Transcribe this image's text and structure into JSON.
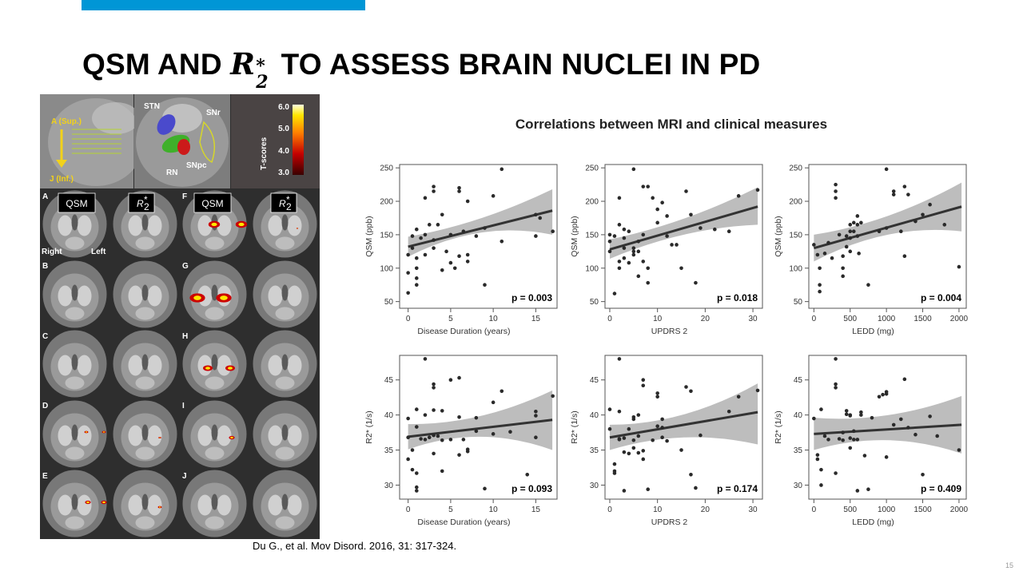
{
  "slide": {
    "title_part1": "QSM AND",
    "title_r2": "R",
    "title_r2_sub": "2",
    "title_r2_sup": "*",
    "title_part2": "TO ASSESS BRAIN NUCLEI IN PD",
    "citation": "Du G., et al. Mov Disord. 2016, 31: 317-324.",
    "page_number": "15"
  },
  "figure": {
    "top_labels": {
      "sup": "A (Sup.)",
      "inf": "J (Inf.)",
      "stn": "STN",
      "snr": "SNr",
      "rn": "RN",
      "snpc": "SNpc",
      "tscores": "T-scores"
    },
    "colorbar_ticks": [
      "6.0",
      "5.0",
      "4.0",
      "3.0"
    ],
    "column_tags": [
      "QSM",
      "R",
      "QSM",
      "R"
    ],
    "r2_sub": "2",
    "r2_sup": "*",
    "row_letters_left": [
      "A",
      "B",
      "C",
      "D",
      "E"
    ],
    "row_letters_right": [
      "F",
      "G",
      "H",
      "I",
      "J"
    ],
    "side_right": "Right",
    "side_left": "Left"
  },
  "chart_heading": "Correlations between MRI and clinical measures",
  "chart_data": [
    {
      "type": "scatter",
      "title": "",
      "xlabel": "Disease Duration (years)",
      "ylabel": "QSM (ppb)",
      "xlim": [
        -1,
        17.5
      ],
      "ylim": [
        40,
        255
      ],
      "xticks": [
        0,
        5,
        10,
        15
      ],
      "yticks": [
        50,
        100,
        150,
        200,
        250
      ],
      "p_label": "p = 0.003",
      "fit": {
        "y0": 132,
        "y1": 186
      },
      "ci": {
        "lo0": 117,
        "lom": 153,
        "lo1": 150,
        "hi0": 147,
        "him": 166,
        "hi1": 218
      },
      "points": [
        [
          0,
          63
        ],
        [
          0,
          93
        ],
        [
          0,
          120
        ],
        [
          0.5,
          148
        ],
        [
          0.5,
          130
        ],
        [
          1,
          75
        ],
        [
          1,
          85
        ],
        [
          1,
          100
        ],
        [
          1,
          115
        ],
        [
          1,
          158
        ],
        [
          1.5,
          145
        ],
        [
          2,
          120
        ],
        [
          2,
          205
        ],
        [
          2,
          150
        ],
        [
          2.5,
          165
        ],
        [
          3,
          222
        ],
        [
          3,
          215
        ],
        [
          3,
          130
        ],
        [
          3,
          142
        ],
        [
          3.5,
          165
        ],
        [
          4,
          180
        ],
        [
          4,
          97
        ],
        [
          4.5,
          125
        ],
        [
          5,
          150
        ],
        [
          5,
          108
        ],
        [
          5.5,
          100
        ],
        [
          6,
          220
        ],
        [
          6,
          215
        ],
        [
          6,
          118
        ],
        [
          6.5,
          155
        ],
        [
          7,
          200
        ],
        [
          7,
          120
        ],
        [
          7,
          110
        ],
        [
          8,
          148
        ],
        [
          9,
          75
        ],
        [
          9,
          160
        ],
        [
          10,
          208
        ],
        [
          11,
          248
        ],
        [
          11,
          140
        ],
        [
          15,
          180
        ],
        [
          15,
          148
        ],
        [
          15.5,
          175
        ],
        [
          17,
          155
        ]
      ]
    },
    {
      "type": "scatter",
      "title": "",
      "xlabel": "UPDRS 2",
      "ylabel": "QSM (ppb)",
      "xlim": [
        -1,
        32
      ],
      "ylim": [
        40,
        255
      ],
      "xticks": [
        0,
        10,
        20,
        30
      ],
      "yticks": [
        50,
        100,
        150,
        200,
        250
      ],
      "p_label": "p = 0.018",
      "fit": {
        "y0": 128,
        "y1": 192
      },
      "ci": {
        "lo0": 114,
        "lom": 150,
        "lo1": 165,
        "hi0": 143,
        "him": 166,
        "hi1": 221
      },
      "points": [
        [
          0,
          150
        ],
        [
          0,
          140
        ],
        [
          0,
          125
        ],
        [
          1,
          62
        ],
        [
          1,
          148
        ],
        [
          2,
          205
        ],
        [
          2,
          165
        ],
        [
          2,
          110
        ],
        [
          2,
          100
        ],
        [
          3,
          158
        ],
        [
          3,
          145
        ],
        [
          3,
          130
        ],
        [
          3,
          115
        ],
        [
          4,
          155
        ],
        [
          4,
          108
        ],
        [
          5,
          248
        ],
        [
          5,
          130
        ],
        [
          5,
          125
        ],
        [
          5,
          120
        ],
        [
          6,
          125
        ],
        [
          6,
          88
        ],
        [
          6,
          140
        ],
        [
          7,
          222
        ],
        [
          7,
          150
        ],
        [
          7,
          110
        ],
        [
          8,
          222
        ],
        [
          8,
          100
        ],
        [
          8,
          78
        ],
        [
          9,
          205
        ],
        [
          10,
          188
        ],
        [
          10,
          168
        ],
        [
          11,
          198
        ],
        [
          12,
          178
        ],
        [
          12,
          148
        ],
        [
          13,
          135
        ],
        [
          14,
          135
        ],
        [
          15,
          100
        ],
        [
          16,
          215
        ],
        [
          17,
          180
        ],
        [
          18,
          78
        ],
        [
          19,
          160
        ],
        [
          22,
          158
        ],
        [
          25,
          155
        ],
        [
          27,
          208
        ],
        [
          31,
          217
        ]
      ]
    },
    {
      "type": "scatter",
      "title": "",
      "xlabel": "LEDD (mg)",
      "ylabel": "QSM (ppb)",
      "xlim": [
        -70,
        2100
      ],
      "ylim": [
        40,
        255
      ],
      "xticks": [
        0,
        500,
        1000,
        1500,
        2000
      ],
      "yticks": [
        50,
        100,
        150,
        200,
        250
      ],
      "p_label": "p = 0.004",
      "fit": {
        "y0": 130,
        "y1": 192
      },
      "ci": {
        "lo0": 110,
        "lom": 150,
        "lo1": 155,
        "hi0": 150,
        "him": 167,
        "hi1": 228
      },
      "points": [
        [
          0,
          135
        ],
        [
          50,
          120
        ],
        [
          80,
          65
        ],
        [
          80,
          75
        ],
        [
          80,
          100
        ],
        [
          150,
          122
        ],
        [
          200,
          138
        ],
        [
          250,
          115
        ],
        [
          300,
          225
        ],
        [
          300,
          215
        ],
        [
          300,
          205
        ],
        [
          350,
          150
        ],
        [
          400,
          118
        ],
        [
          400,
          100
        ],
        [
          400,
          88
        ],
        [
          450,
          148
        ],
        [
          450,
          132
        ],
        [
          500,
          145
        ],
        [
          500,
          155
        ],
        [
          500,
          165
        ],
        [
          500,
          125
        ],
        [
          550,
          168
        ],
        [
          550,
          155
        ],
        [
          600,
          165
        ],
        [
          600,
          148
        ],
        [
          600,
          178
        ],
        [
          620,
          122
        ],
        [
          650,
          168
        ],
        [
          750,
          75
        ],
        [
          900,
          155
        ],
        [
          1000,
          160
        ],
        [
          1000,
          248
        ],
        [
          1100,
          215
        ],
        [
          1100,
          210
        ],
        [
          1200,
          155
        ],
        [
          1250,
          118
        ],
        [
          1250,
          222
        ],
        [
          1300,
          210
        ],
        [
          1400,
          170
        ],
        [
          1500,
          180
        ],
        [
          1600,
          195
        ],
        [
          1800,
          165
        ],
        [
          2000,
          102
        ]
      ]
    },
    {
      "type": "scatter",
      "title": "",
      "xlabel": "Disease Duration (years)",
      "ylabel": "R2* (1/s)",
      "xlim": [
        -1,
        17.5
      ],
      "ylim": [
        28,
        48.5
      ],
      "xticks": [
        0,
        5,
        10,
        15
      ],
      "yticks": [
        30,
        35,
        40,
        45
      ],
      "p_label": "p = 0.093",
      "fit": {
        "y0": 36.9,
        "y1": 39.3
      },
      "ci": {
        "lo0": 35.1,
        "lom": 36.9,
        "lo1": 35.0,
        "hi0": 38.7,
        "him": 38.6,
        "hi1": 43.5
      },
      "points": [
        [
          0,
          39.5
        ],
        [
          0,
          36.8
        ],
        [
          0,
          33.7
        ],
        [
          0.5,
          32.2
        ],
        [
          0.5,
          35.0
        ],
        [
          1,
          38.3
        ],
        [
          1,
          40.8
        ],
        [
          1,
          29.7
        ],
        [
          1,
          31.7
        ],
        [
          1,
          29.2
        ],
        [
          1.5,
          36.6
        ],
        [
          2,
          48.0
        ],
        [
          2,
          40.0
        ],
        [
          2,
          36.5
        ],
        [
          2.5,
          36.8
        ],
        [
          3,
          44.4
        ],
        [
          3,
          43.9
        ],
        [
          3,
          40.7
        ],
        [
          3,
          34.5
        ],
        [
          3,
          37.1
        ],
        [
          3.5,
          37.0
        ],
        [
          4,
          40.6
        ],
        [
          4,
          36.4
        ],
        [
          4,
          32.0
        ],
        [
          5,
          45.0
        ],
        [
          5,
          36.5
        ],
        [
          6,
          45.3
        ],
        [
          6,
          39.7
        ],
        [
          6,
          34.3
        ],
        [
          6.5,
          36.5
        ],
        [
          7,
          34.8
        ],
        [
          7,
          35.1
        ],
        [
          8,
          39.6
        ],
        [
          8,
          37.7
        ],
        [
          9,
          29.5
        ],
        [
          10,
          41.8
        ],
        [
          10,
          37.3
        ],
        [
          11,
          43.4
        ],
        [
          12,
          37.6
        ],
        [
          14,
          31.5
        ],
        [
          15,
          40.5
        ],
        [
          15,
          39.9
        ],
        [
          15,
          36.8
        ],
        [
          17,
          42.7
        ]
      ]
    },
    {
      "type": "scatter",
      "title": "",
      "xlabel": "UPDRS 2",
      "ylabel": "R2* (1/s)",
      "xlim": [
        -1,
        32
      ],
      "ylim": [
        28,
        48.5
      ],
      "xticks": [
        0,
        10,
        20,
        30
      ],
      "yticks": [
        30,
        35,
        40,
        45
      ],
      "p_label": "p = 0.174",
      "fit": {
        "y0": 36.8,
        "y1": 40.4
      },
      "ci": {
        "lo0": 35.0,
        "lom": 36.8,
        "lo1": 35.8,
        "hi0": 38.6,
        "him": 38.6,
        "hi1": 44.5
      },
      "points": [
        [
          0,
          40.8
        ],
        [
          0,
          38.0
        ],
        [
          1,
          31.7
        ],
        [
          1,
          32.0
        ],
        [
          1,
          33.0
        ],
        [
          2,
          48.0
        ],
        [
          2,
          36.5
        ],
        [
          2,
          36.6
        ],
        [
          2,
          40.5
        ],
        [
          3,
          29.2
        ],
        [
          3,
          36.7
        ],
        [
          3,
          34.7
        ],
        [
          4,
          38.0
        ],
        [
          4,
          34.5
        ],
        [
          5,
          39.4
        ],
        [
          5,
          39.7
        ],
        [
          5,
          36.4
        ],
        [
          5,
          35.3
        ],
        [
          6,
          40.0
        ],
        [
          6,
          34.6
        ],
        [
          6,
          37.0
        ],
        [
          7,
          45.0
        ],
        [
          7,
          44.2
        ],
        [
          7,
          34.9
        ],
        [
          7,
          33.7
        ],
        [
          8,
          29.4
        ],
        [
          9,
          36.4
        ],
        [
          10,
          43.1
        ],
        [
          10,
          42.6
        ],
        [
          10,
          38.4
        ],
        [
          11,
          38.2
        ],
        [
          11,
          39.4
        ],
        [
          11,
          36.8
        ],
        [
          12,
          36.3
        ],
        [
          15,
          35.0
        ],
        [
          16,
          44.0
        ],
        [
          17,
          31.5
        ],
        [
          17,
          43.4
        ],
        [
          18,
          29.6
        ],
        [
          19,
          37.1
        ],
        [
          25,
          40.5
        ],
        [
          27,
          42.6
        ],
        [
          31,
          43.5
        ]
      ]
    },
    {
      "type": "scatter",
      "title": "",
      "xlabel": "LEDD (mg)",
      "ylabel": "R2* (1/s)",
      "xlim": [
        -70,
        2100
      ],
      "ylim": [
        28,
        48.5
      ],
      "xticks": [
        0,
        500,
        1000,
        1500,
        2000
      ],
      "yticks": [
        30,
        35,
        40,
        45
      ],
      "p_label": "p = 0.409",
      "fit": {
        "y0": 37.3,
        "y1": 38.6
      },
      "ci": {
        "lo0": 35.0,
        "lom": 36.4,
        "lo1": 34.5,
        "hi0": 39.6,
        "him": 38.8,
        "hi1": 42.7
      },
      "points": [
        [
          0,
          39.5
        ],
        [
          50,
          34.3
        ],
        [
          50,
          33.7
        ],
        [
          100,
          40.8
        ],
        [
          100,
          30.0
        ],
        [
          100,
          32.2
        ],
        [
          150,
          37.0
        ],
        [
          200,
          36.5
        ],
        [
          300,
          48.0
        ],
        [
          300,
          44.4
        ],
        [
          300,
          43.9
        ],
        [
          300,
          31.7
        ],
        [
          350,
          36.6
        ],
        [
          400,
          37.5
        ],
        [
          400,
          36.4
        ],
        [
          450,
          40.6
        ],
        [
          450,
          40.1
        ],
        [
          500,
          39.9
        ],
        [
          500,
          40.0
        ],
        [
          500,
          36.7
        ],
        [
          500,
          35.3
        ],
        [
          550,
          37.7
        ],
        [
          550,
          36.5
        ],
        [
          600,
          36.5
        ],
        [
          600,
          29.2
        ],
        [
          650,
          40.0
        ],
        [
          650,
          40.4
        ],
        [
          700,
          34.2
        ],
        [
          750,
          29.4
        ],
        [
          800,
          39.6
        ],
        [
          900,
          42.6
        ],
        [
          950,
          42.9
        ],
        [
          1000,
          43.0
        ],
        [
          1000,
          43.3
        ],
        [
          1000,
          34.0
        ],
        [
          1100,
          38.6
        ],
        [
          1200,
          39.4
        ],
        [
          1250,
          45.1
        ],
        [
          1300,
          38.2
        ],
        [
          1400,
          37.2
        ],
        [
          1500,
          31.5
        ],
        [
          1600,
          39.8
        ],
        [
          1700,
          37.0
        ],
        [
          2000,
          35.0
        ]
      ]
    }
  ]
}
